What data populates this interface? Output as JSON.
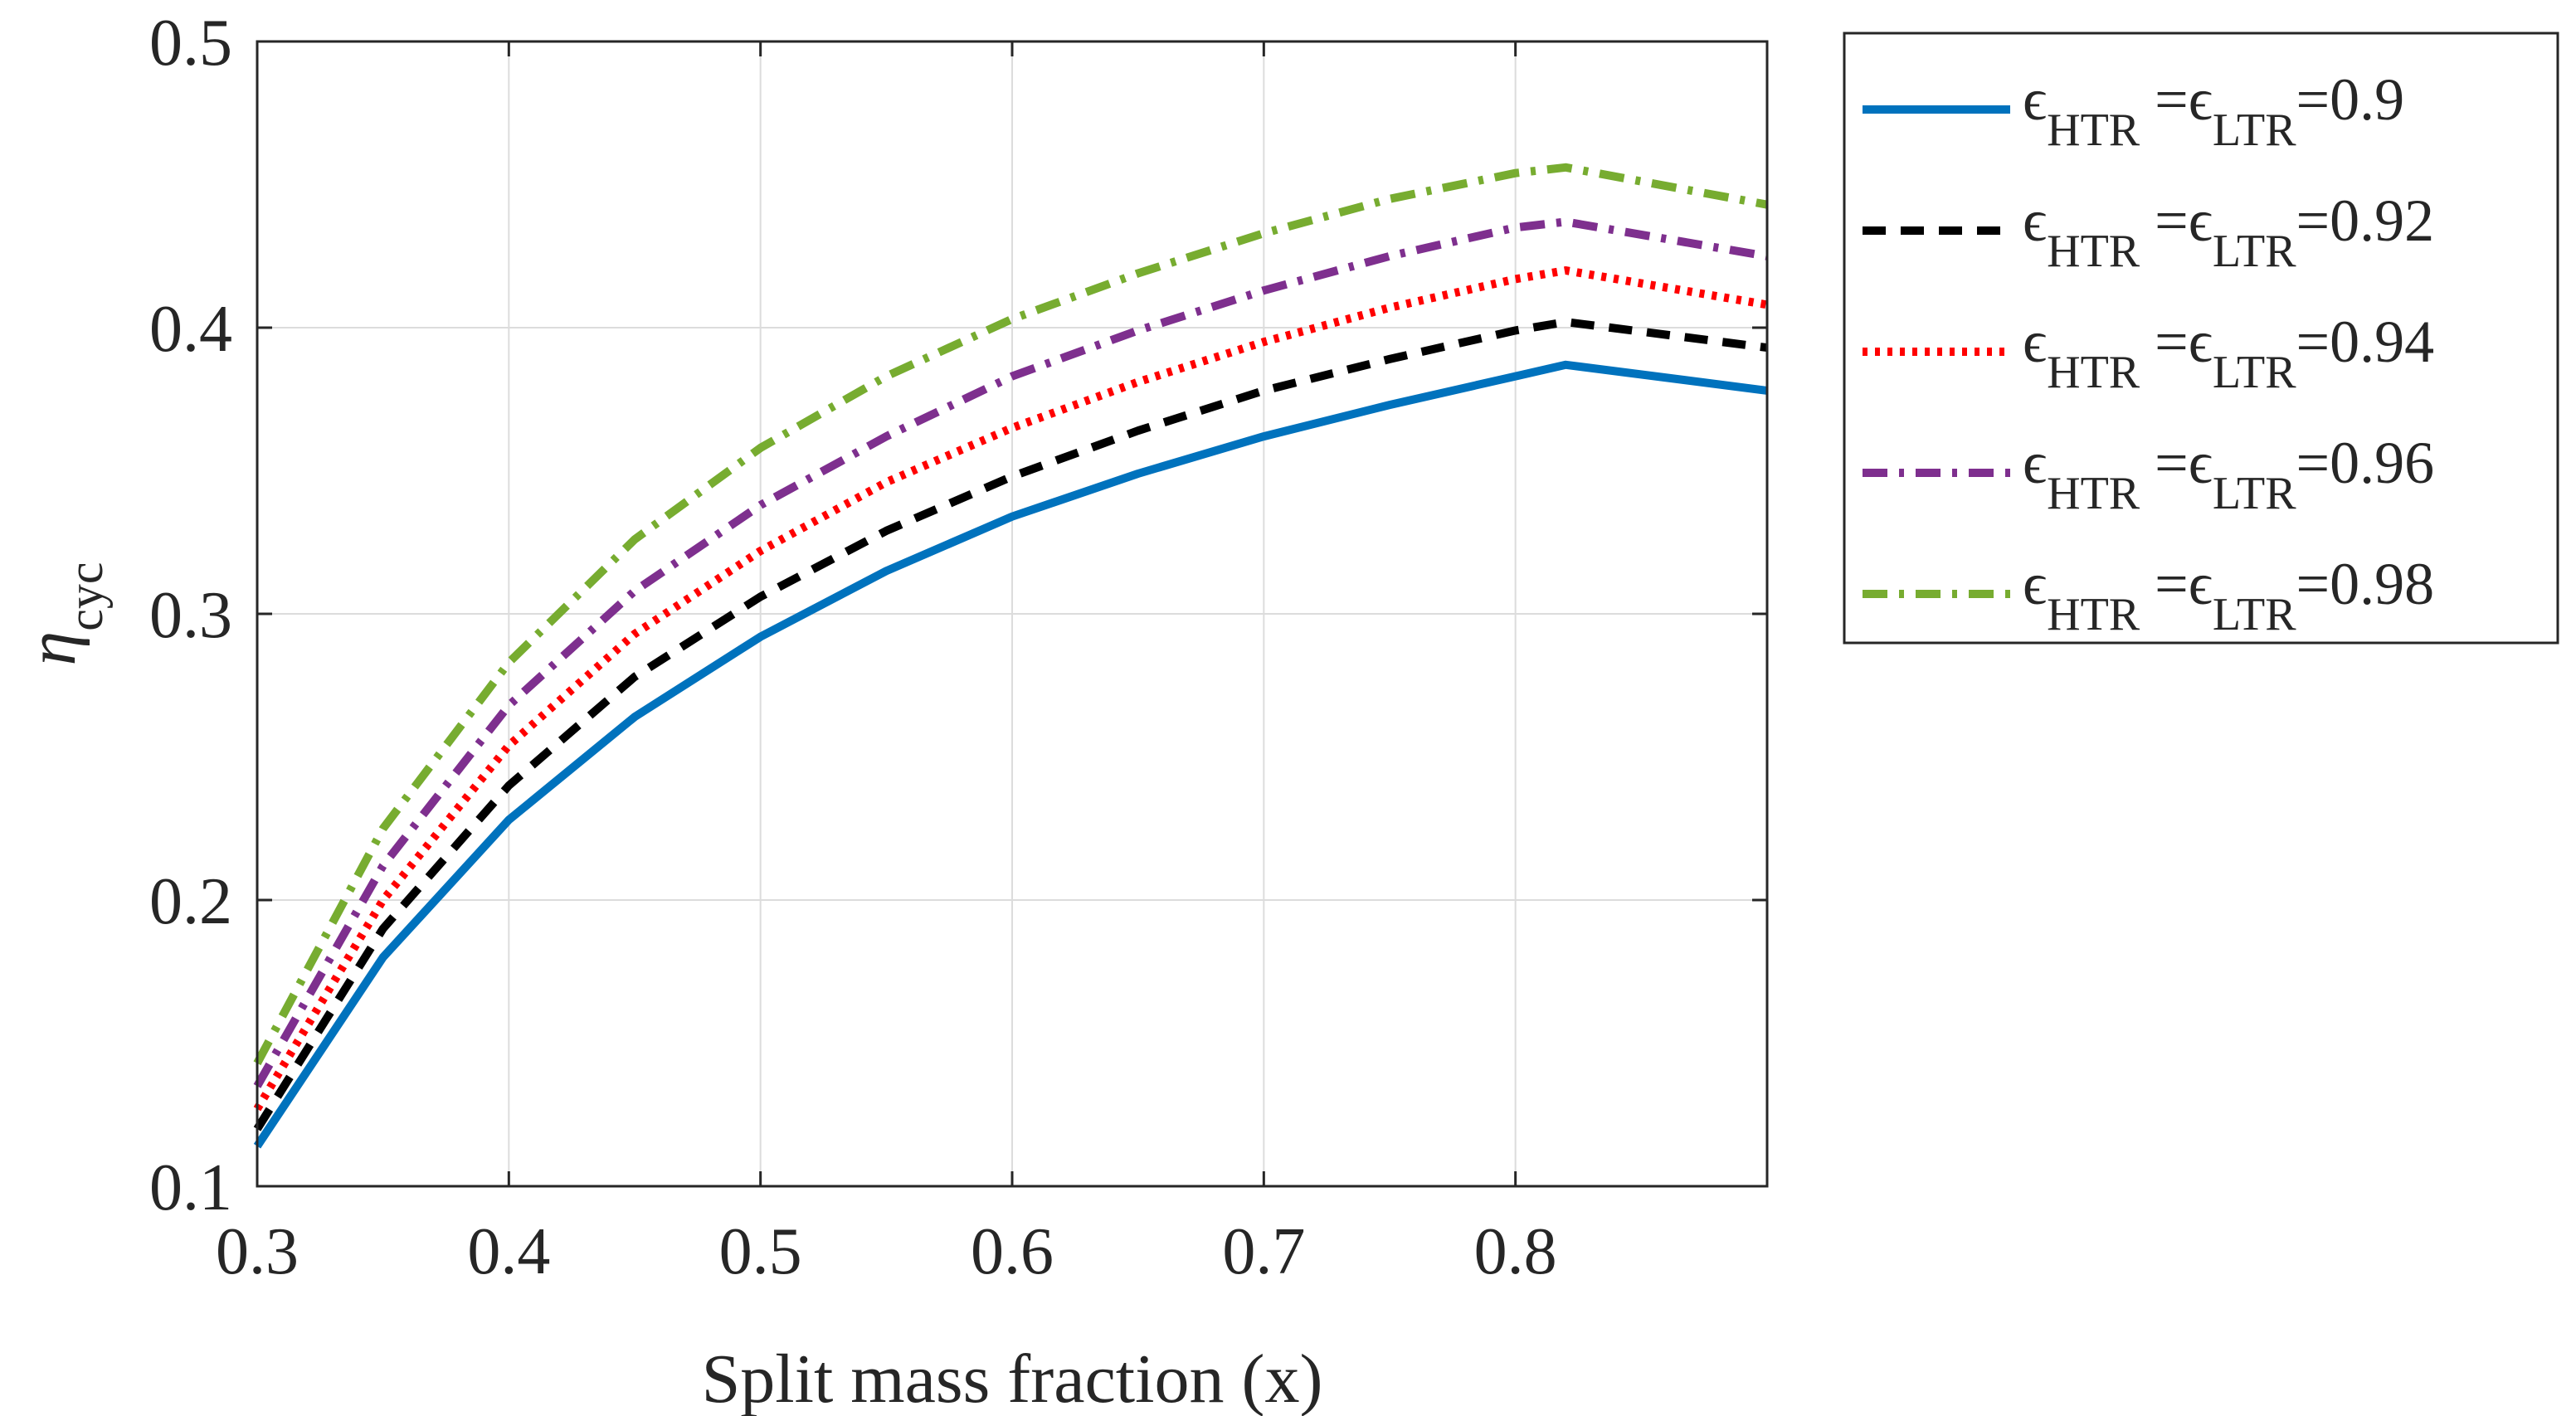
{
  "chart_data": {
    "type": "line",
    "title": "",
    "xlabel": "Split mass fraction (x)",
    "ylabel": {
      "symbol": "η",
      "subscript": "cyc"
    },
    "xlim": [
      0.3,
      0.9
    ],
    "ylim": [
      0.1,
      0.5
    ],
    "xticks": [
      0.3,
      0.4,
      0.5,
      0.6,
      0.7,
      0.8
    ],
    "yticks": [
      0.1,
      0.2,
      0.3,
      0.4,
      0.5
    ],
    "xtick_labels": [
      "0.3",
      "0.4",
      "0.5",
      "0.6",
      "0.7",
      "0.8"
    ],
    "ytick_labels": [
      "0.1",
      "0.2",
      "0.3",
      "0.4",
      "0.5"
    ],
    "grid": true,
    "legend_position": "outside-right-top",
    "x": [
      0.3,
      0.35,
      0.4,
      0.45,
      0.5,
      0.55,
      0.6,
      0.65,
      0.7,
      0.75,
      0.8,
      0.82,
      0.9
    ],
    "series": [
      {
        "name": "εHTR=εLTR=0.9",
        "legend": {
          "eps": "ϵ",
          "sub1": "HTR",
          "eq1": " =",
          "eps2": "ϵ",
          "sub2": "LTR",
          "val": "=0.9"
        },
        "color": "#0072BD",
        "dash": "solid",
        "values": [
          0.114,
          0.18,
          0.228,
          0.264,
          0.292,
          0.315,
          0.334,
          0.349,
          0.362,
          0.373,
          0.383,
          0.387,
          0.378
        ]
      },
      {
        "name": "εHTR=εLTR=0.92",
        "legend": {
          "eps": "ϵ",
          "sub1": "HTR",
          "eq1": " =",
          "eps2": "ϵ",
          "sub2": "LTR",
          "val": "=0.92"
        },
        "color": "#000000",
        "dash": "dashed",
        "values": [
          0.12,
          0.19,
          0.24,
          0.278,
          0.306,
          0.329,
          0.348,
          0.364,
          0.378,
          0.389,
          0.399,
          0.402,
          0.393
        ]
      },
      {
        "name": "εHTR=εLTR=0.94",
        "legend": {
          "eps": "ϵ",
          "sub1": "HTR",
          "eq1": " =",
          "eps2": "ϵ",
          "sub2": "LTR",
          "val": "=0.94"
        },
        "color": "#FF0000",
        "dash": "dotted",
        "values": [
          0.127,
          0.2,
          0.254,
          0.293,
          0.322,
          0.346,
          0.365,
          0.381,
          0.395,
          0.407,
          0.417,
          0.42,
          0.408
        ]
      },
      {
        "name": "εHTR=εLTR=0.96",
        "legend": {
          "eps": "ϵ",
          "sub1": "HTR",
          "eq1": " =",
          "eps2": "ϵ",
          "sub2": "LTR",
          "val": "=0.96"
        },
        "color": "#7E2F8E",
        "dash": "dashdot",
        "values": [
          0.135,
          0.212,
          0.268,
          0.308,
          0.338,
          0.362,
          0.383,
          0.399,
          0.413,
          0.425,
          0.435,
          0.437,
          0.425
        ]
      },
      {
        "name": "εHTR=εLTR=0.98",
        "legend": {
          "eps": "ϵ",
          "sub1": "HTR",
          "eq1": " =",
          "eps2": "ϵ",
          "sub2": "LTR",
          "val": "=0.98"
        },
        "color": "#77AC30",
        "dash": "dashdot",
        "values": [
          0.143,
          0.225,
          0.283,
          0.326,
          0.358,
          0.383,
          0.403,
          0.419,
          0.433,
          0.445,
          0.454,
          0.456,
          0.443
        ]
      }
    ]
  }
}
